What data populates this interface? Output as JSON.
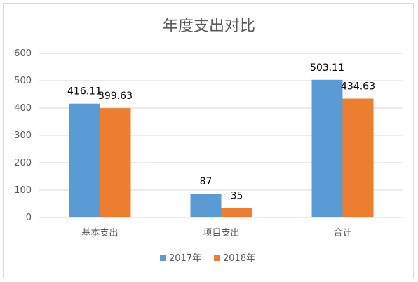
{
  "chart_data": {
    "type": "bar",
    "title": "年度支出对比",
    "categories": [
      "基本支出",
      "项目支出",
      "合计"
    ],
    "series": [
      {
        "name": "2017年",
        "values": [
          416.11,
          87,
          503.11
        ],
        "labels": [
          "416.11",
          "87",
          "503.11"
        ],
        "color": "#5B9BD5"
      },
      {
        "name": "2018年",
        "values": [
          399.63,
          35,
          434.63
        ],
        "labels": [
          "399.63",
          "35",
          "434.63"
        ],
        "color": "#ED7D31"
      }
    ],
    "yticks": [
      "0",
      "100",
      "200",
      "300",
      "400",
      "500",
      "600"
    ],
    "ylim": [
      0,
      600
    ],
    "grid": true,
    "legend_position": "bottom"
  }
}
